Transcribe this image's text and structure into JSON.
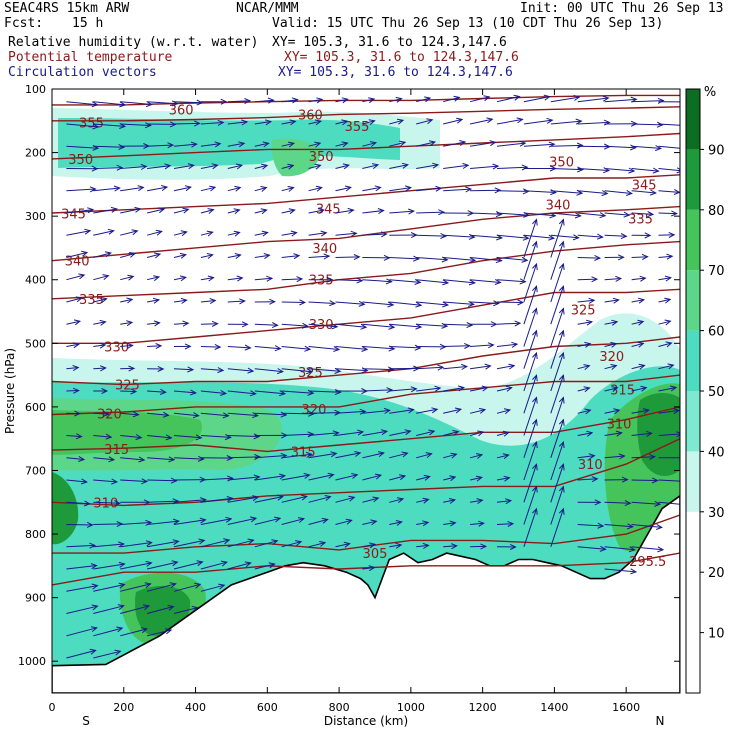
{
  "header": {
    "model": "SEAC4RS 15km ARW",
    "org": "NCAR/MMM",
    "init": "Init: 00 UTC Thu 26 Sep 13",
    "fcst_label": "Fcst:",
    "fcst_value": "15 h",
    "valid": "Valid: 15 UTC Thu 26 Sep 13 (10 CDT Thu 26 Sep 13)",
    "fields": [
      {
        "name": "Relative humidity (w.r.t. water)",
        "xy": "XY= 105.3, 31.6 to 124.3,147.6"
      },
      {
        "name": "Potential temperature",
        "xy": "XY= 105.3, 31.6 to 124.3,147.6"
      },
      {
        "name": "Circulation vectors",
        "xy": "XY= 105.3, 31.6 to 124.3,147.6"
      }
    ]
  },
  "colors": {
    "theta": "#8b1a1a",
    "vectors": "#1a1a8b",
    "rh_30_40": "#c8f5ec",
    "rh_40_50": "#7fe8d0",
    "rh_50_60": "#4ddcc0",
    "rh_60_70": "#5dd68a",
    "rh_70_80": "#44c45a",
    "rh_80_90": "#1f9a3a",
    "rh_90_100": "#0b6e22",
    "terrain_fill": "#ffffff"
  },
  "chart_data": {
    "type": "cross-section",
    "xlabel": "Distance (km)",
    "ylabel": "Pressure (hPa)",
    "xlim": [
      0,
      1750
    ],
    "ylim": [
      1050,
      100
    ],
    "x_ticks": [
      0,
      200,
      400,
      600,
      800,
      1000,
      1200,
      1400,
      1600
    ],
    "y_ticks": [
      100,
      200,
      300,
      400,
      500,
      600,
      700,
      800,
      900,
      1000
    ],
    "x_end_labels": {
      "left": "S",
      "right": "N"
    },
    "colorbar": {
      "unit": "%",
      "levels": [
        10,
        20,
        30,
        40,
        50,
        60,
        70,
        80,
        90
      ],
      "range": [
        0,
        100
      ]
    },
    "terrain_surface": [
      [
        0,
        1007
      ],
      [
        150,
        1005
      ],
      [
        200,
        990
      ],
      [
        300,
        960
      ],
      [
        400,
        920
      ],
      [
        500,
        880
      ],
      [
        600,
        860
      ],
      [
        650,
        850
      ],
      [
        700,
        845
      ],
      [
        760,
        850
      ],
      [
        820,
        860
      ],
      [
        860,
        870
      ],
      [
        880,
        880
      ],
      [
        900,
        900
      ],
      [
        920,
        870
      ],
      [
        940,
        840
      ],
      [
        980,
        830
      ],
      [
        1020,
        845
      ],
      [
        1060,
        840
      ],
      [
        1100,
        830
      ],
      [
        1140,
        835
      ],
      [
        1180,
        840
      ],
      [
        1220,
        850
      ],
      [
        1260,
        850
      ],
      [
        1300,
        840
      ],
      [
        1340,
        840
      ],
      [
        1380,
        845
      ],
      [
        1420,
        850
      ],
      [
        1460,
        860
      ],
      [
        1500,
        870
      ],
      [
        1540,
        870
      ],
      [
        1580,
        860
      ],
      [
        1620,
        840
      ],
      [
        1660,
        800
      ],
      [
        1700,
        760
      ],
      [
        1750,
        740
      ]
    ],
    "theta_contours": [
      {
        "value": 295.5,
        "label": "295.5",
        "label_at": [
          1660,
          842
        ],
        "points": [
          [
            0,
            880
          ],
          [
            200,
            860
          ],
          [
            400,
            860
          ],
          [
            600,
            850
          ],
          [
            800,
            855
          ],
          [
            1000,
            850
          ],
          [
            1200,
            850
          ],
          [
            1400,
            850
          ],
          [
            1600,
            845
          ],
          [
            1750,
            830
          ]
        ]
      },
      {
        "value": 305,
        "label": "305",
        "label_at": [
          900,
          830
        ],
        "points": [
          [
            0,
            830
          ],
          [
            200,
            830
          ],
          [
            400,
            820
          ],
          [
            600,
            815
          ],
          [
            800,
            825
          ],
          [
            1000,
            810
          ],
          [
            1200,
            810
          ],
          [
            1400,
            815
          ],
          [
            1600,
            800
          ],
          [
            1750,
            770
          ]
        ]
      },
      {
        "value": 310,
        "label": "310",
        "label_at": [
          150,
          750
        ],
        "points": [
          [
            0,
            750
          ],
          [
            200,
            755
          ],
          [
            400,
            750
          ],
          [
            600,
            740
          ],
          [
            800,
            735
          ],
          [
            1000,
            730
          ],
          [
            1200,
            725
          ],
          [
            1400,
            725
          ],
          [
            1600,
            690
          ],
          [
            1750,
            650
          ]
        ]
      },
      {
        "value": 310,
        "label": "310",
        "label_at": [
          1500,
          690
        ],
        "points": []
      },
      {
        "value": 315,
        "label": "315",
        "label_at": [
          180,
          666
        ],
        "points": [
          [
            0,
            668
          ],
          [
            200,
            665
          ],
          [
            400,
            660
          ],
          [
            600,
            670
          ],
          [
            800,
            660
          ],
          [
            1000,
            650
          ],
          [
            1200,
            640
          ],
          [
            1400,
            640
          ],
          [
            1600,
            620
          ],
          [
            1750,
            600
          ]
        ]
      },
      {
        "value": 310,
        "label": "310",
        "label_at": [
          1580,
          626
        ],
        "points": []
      },
      {
        "value": 315,
        "label": "315",
        "label_at": [
          700,
          670
        ],
        "points": []
      },
      {
        "value": 320,
        "label": "320",
        "label_at": [
          160,
          610
        ],
        "points": [
          [
            0,
            612
          ],
          [
            200,
            608
          ],
          [
            400,
            600
          ],
          [
            600,
            600
          ],
          [
            800,
            600
          ],
          [
            1000,
            580
          ],
          [
            1200,
            570
          ],
          [
            1400,
            560
          ],
          [
            1600,
            560
          ],
          [
            1750,
            550
          ]
        ]
      },
      {
        "value": 320,
        "label": "320",
        "label_at": [
          730,
          603
        ],
        "points": []
      },
      {
        "value": 315,
        "label": "315",
        "label_at": [
          1590,
          573
        ],
        "points": []
      },
      {
        "value": 325,
        "label": "325",
        "label_at": [
          210,
          565
        ],
        "points": [
          [
            0,
            560
          ],
          [
            200,
            565
          ],
          [
            400,
            560
          ],
          [
            600,
            560
          ],
          [
            800,
            550
          ],
          [
            1000,
            540
          ],
          [
            1200,
            520
          ],
          [
            1400,
            505
          ],
          [
            1600,
            500
          ],
          [
            1750,
            490
          ]
        ]
      },
      {
        "value": 325,
        "label": "325",
        "label_at": [
          720,
          545
        ],
        "points": []
      },
      {
        "value": 320,
        "label": "320",
        "label_at": [
          1560,
          520
        ],
        "points": []
      },
      {
        "value": 330,
        "label": "330",
        "label_at": [
          180,
          505
        ],
        "points": [
          [
            0,
            500
          ],
          [
            200,
            500
          ],
          [
            400,
            490
          ],
          [
            600,
            480
          ],
          [
            800,
            470
          ],
          [
            1000,
            460
          ],
          [
            1200,
            440
          ],
          [
            1400,
            420
          ],
          [
            1600,
            420
          ],
          [
            1750,
            415
          ]
        ]
      },
      {
        "value": 330,
        "label": "330",
        "label_at": [
          750,
          470
        ],
        "points": []
      },
      {
        "value": 325,
        "label": "325",
        "label_at": [
          1480,
          447
        ],
        "points": []
      },
      {
        "value": 335,
        "label": "335",
        "label_at": [
          110,
          430
        ],
        "points": [
          [
            0,
            430
          ],
          [
            200,
            425
          ],
          [
            400,
            420
          ],
          [
            600,
            415
          ],
          [
            800,
            400
          ],
          [
            1000,
            390
          ],
          [
            1200,
            370
          ],
          [
            1400,
            355
          ],
          [
            1600,
            345
          ],
          [
            1750,
            340
          ]
        ]
      },
      {
        "value": 335,
        "label": "335",
        "label_at": [
          750,
          400
        ],
        "points": []
      },
      {
        "value": 340,
        "label": "340",
        "label_at": [
          70,
          370
        ],
        "points": [
          [
            0,
            370
          ],
          [
            200,
            360
          ],
          [
            400,
            350
          ],
          [
            600,
            340
          ],
          [
            800,
            335
          ],
          [
            1000,
            320
          ],
          [
            1200,
            305
          ],
          [
            1400,
            295
          ],
          [
            1600,
            290
          ],
          [
            1750,
            285
          ]
        ]
      },
      {
        "value": 340,
        "label": "340",
        "label_at": [
          760,
          350
        ],
        "points": []
      },
      {
        "value": 335,
        "label": "335",
        "label_at": [
          1640,
          304
        ],
        "points": []
      },
      {
        "value": 345,
        "label": "345",
        "label_at": [
          60,
          296
        ],
        "points": [
          [
            0,
            295
          ],
          [
            200,
            290
          ],
          [
            400,
            285
          ],
          [
            600,
            280
          ],
          [
            800,
            270
          ],
          [
            1000,
            260
          ],
          [
            1200,
            250
          ],
          [
            1400,
            240
          ],
          [
            1600,
            240
          ],
          [
            1750,
            235
          ]
        ]
      },
      {
        "value": 345,
        "label": "345",
        "label_at": [
          770,
          288
        ],
        "points": []
      },
      {
        "value": 340,
        "label": "340",
        "label_at": [
          1410,
          282
        ],
        "points": []
      },
      {
        "value": 345,
        "label": "345",
        "label_at": [
          1650,
          250
        ],
        "points": []
      },
      {
        "value": 350,
        "label": "350",
        "label_at": [
          80,
          210
        ],
        "points": [
          [
            0,
            210
          ],
          [
            200,
            205
          ],
          [
            400,
            200
          ],
          [
            600,
            195
          ],
          [
            800,
            195
          ],
          [
            1000,
            190
          ],
          [
            1200,
            185
          ],
          [
            1400,
            180
          ],
          [
            1600,
            175
          ],
          [
            1750,
            170
          ]
        ]
      },
      {
        "value": 350,
        "label": "350",
        "label_at": [
          750,
          205
        ],
        "points": []
      },
      {
        "value": 350,
        "label": "350",
        "label_at": [
          1420,
          214
        ],
        "points": []
      },
      {
        "value": 355,
        "label": "355",
        "label_at": [
          110,
          153
        ],
        "points": [
          [
            0,
            150
          ],
          [
            200,
            150
          ],
          [
            400,
            148
          ],
          [
            600,
            145
          ],
          [
            800,
            140
          ],
          [
            1000,
            138
          ],
          [
            1200,
            135
          ],
          [
            1400,
            132
          ],
          [
            1600,
            130
          ],
          [
            1750,
            128
          ]
        ]
      },
      {
        "value": 355,
        "label": "355",
        "label_at": [
          850,
          158
        ],
        "points": []
      },
      {
        "value": 360,
        "label": "360",
        "label_at": [
          360,
          132
        ],
        "points": [
          [
            0,
            125
          ],
          [
            200,
            125
          ],
          [
            400,
            122
          ],
          [
            600,
            120
          ],
          [
            800,
            118
          ],
          [
            1000,
            118
          ],
          [
            1200,
            115
          ],
          [
            1400,
            112
          ],
          [
            1600,
            110
          ],
          [
            1750,
            110
          ]
        ]
      },
      {
        "value": 360,
        "label": "360",
        "label_at": [
          720,
          140
        ],
        "points": []
      }
    ]
  }
}
